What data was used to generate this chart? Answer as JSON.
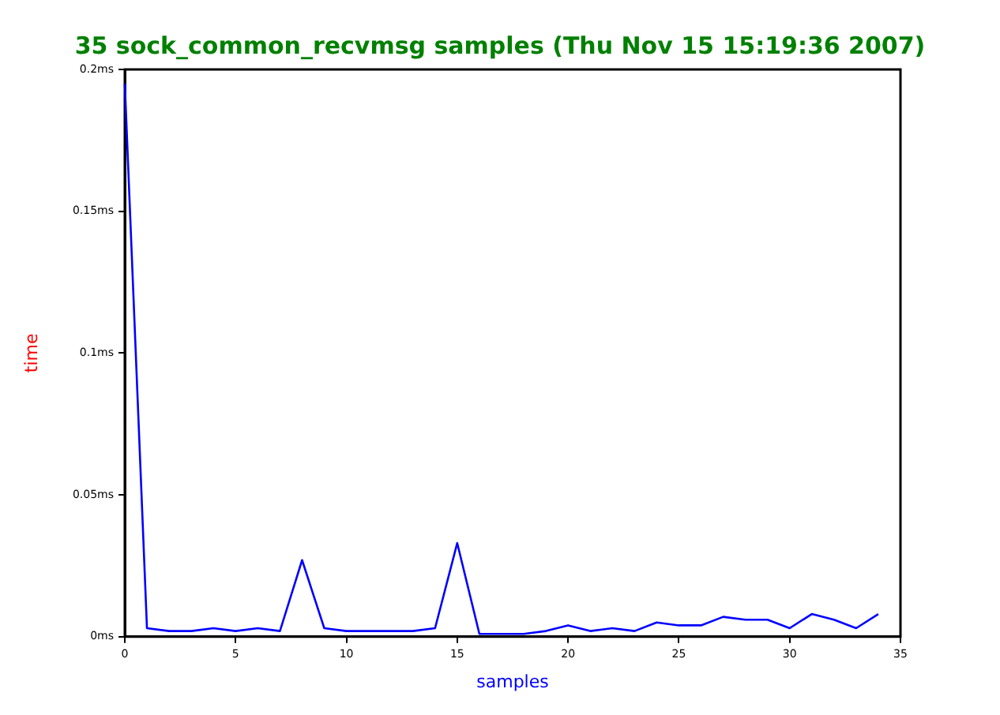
{
  "chart_data": {
    "type": "line",
    "title": "35 sock_common_recvmsg samples (Thu Nov 15 15:19:36 2007)",
    "xlabel": "samples",
    "ylabel": "time",
    "x": [
      0,
      1,
      2,
      3,
      4,
      5,
      6,
      7,
      8,
      9,
      10,
      11,
      12,
      13,
      14,
      15,
      16,
      17,
      18,
      19,
      20,
      21,
      22,
      23,
      24,
      25,
      26,
      27,
      28,
      29,
      30,
      31,
      32,
      33,
      34
    ],
    "series": [
      {
        "color": "#0000ff",
        "values": [
          0.195,
          0.003,
          0.002,
          0.002,
          0.003,
          0.002,
          0.003,
          0.002,
          0.027,
          0.003,
          0.002,
          0.002,
          0.002,
          0.002,
          0.003,
          0.033,
          0.001,
          0.001,
          0.001,
          0.002,
          0.004,
          0.002,
          0.003,
          0.002,
          0.005,
          0.004,
          0.004,
          0.007,
          0.006,
          0.006,
          0.003,
          0.008,
          0.006,
          0.003,
          0.008
        ]
      }
    ],
    "xlim": [
      0,
      35
    ],
    "xticks": [
      0,
      5,
      10,
      15,
      20,
      25,
      30,
      35
    ],
    "ylim": [
      0,
      0.2
    ],
    "yticks": [
      {
        "value": 0,
        "label": "0ms"
      },
      {
        "value": 0.05,
        "label": "0.05ms"
      },
      {
        "value": 0.1,
        "label": "0.1ms"
      },
      {
        "value": 0.15,
        "label": "0.15ms"
      },
      {
        "value": 0.2,
        "label": "0.2ms"
      }
    ],
    "grid": false,
    "legend": false,
    "marker": "none",
    "line_style": "solid"
  }
}
